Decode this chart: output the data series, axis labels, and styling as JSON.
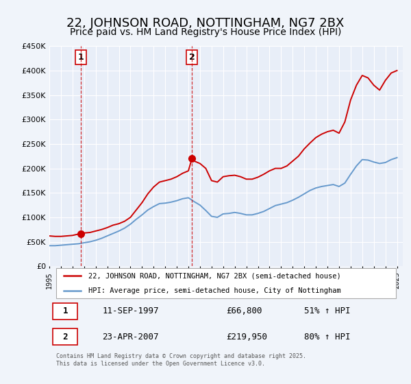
{
  "title": "22, JOHNSON ROAD, NOTTINGHAM, NG7 2BX",
  "subtitle": "Price paid vs. HM Land Registry's House Price Index (HPI)",
  "title_fontsize": 13,
  "subtitle_fontsize": 10,
  "background_color": "#f0f4fa",
  "plot_bg_color": "#e8eef8",
  "grid_color": "#ffffff",
  "ylabel_ticks": [
    "£0",
    "£50K",
    "£100K",
    "£150K",
    "£200K",
    "£250K",
    "£300K",
    "£350K",
    "£400K",
    "£450K"
  ],
  "ylabel_values": [
    0,
    50000,
    100000,
    150000,
    200000,
    250000,
    300000,
    350000,
    400000,
    450000
  ],
  "ylim": [
    0,
    450000
  ],
  "xlim_start": 1995.0,
  "xlim_end": 2025.5,
  "xtick_years": [
    1995,
    1996,
    1997,
    1998,
    1999,
    2000,
    2001,
    2002,
    2003,
    2004,
    2005,
    2006,
    2007,
    2008,
    2009,
    2010,
    2011,
    2012,
    2013,
    2014,
    2015,
    2016,
    2017,
    2018,
    2019,
    2020,
    2021,
    2022,
    2023,
    2024,
    2025
  ],
  "red_line_color": "#cc0000",
  "blue_line_color": "#6699cc",
  "marker_color": "#cc0000",
  "vline_color": "#cc0000",
  "sale1_x": 1997.7,
  "sale1_y": 66800,
  "sale1_label": "1",
  "sale2_x": 2007.3,
  "sale2_y": 219950,
  "sale2_label": "2",
  "legend_label_red": "22, JOHNSON ROAD, NOTTINGHAM, NG7 2BX (semi-detached house)",
  "legend_label_blue": "HPI: Average price, semi-detached house, City of Nottingham",
  "annotation1_num": "1",
  "annotation1_date": "11-SEP-1997",
  "annotation1_price": "£66,800",
  "annotation1_hpi": "51% ↑ HPI",
  "annotation2_num": "2",
  "annotation2_date": "23-APR-2007",
  "annotation2_price": "£219,950",
  "annotation2_hpi": "80% ↑ HPI",
  "footer": "Contains HM Land Registry data © Crown copyright and database right 2025.\nThis data is licensed under the Open Government Licence v3.0.",
  "red_hpi_x": [
    1995.0,
    1995.5,
    1996.0,
    1996.5,
    1997.0,
    1997.7,
    1998.0,
    1998.5,
    1999.0,
    1999.5,
    2000.0,
    2000.5,
    2001.0,
    2001.5,
    2002.0,
    2002.5,
    2003.0,
    2003.5,
    2004.0,
    2004.5,
    2005.0,
    2005.5,
    2006.0,
    2006.5,
    2007.0,
    2007.3,
    2007.5,
    2008.0,
    2008.5,
    2009.0,
    2009.5,
    2010.0,
    2010.5,
    2011.0,
    2011.5,
    2012.0,
    2012.5,
    2013.0,
    2013.5,
    2014.0,
    2014.5,
    2015.0,
    2015.5,
    2016.0,
    2016.5,
    2017.0,
    2017.5,
    2018.0,
    2018.5,
    2019.0,
    2019.5,
    2020.0,
    2020.5,
    2021.0,
    2021.5,
    2022.0,
    2022.5,
    2023.0,
    2023.5,
    2024.0,
    2024.5,
    2025.0
  ],
  "red_hpi_y": [
    62000,
    61000,
    61000,
    62000,
    63000,
    66800,
    68000,
    69000,
    72000,
    75000,
    79000,
    84000,
    87000,
    92000,
    100000,
    115000,
    130000,
    148000,
    162000,
    172000,
    175000,
    178000,
    183000,
    190000,
    195000,
    219950,
    215000,
    210000,
    200000,
    175000,
    172000,
    183000,
    185000,
    186000,
    183000,
    178000,
    178000,
    182000,
    188000,
    195000,
    200000,
    200000,
    205000,
    215000,
    225000,
    240000,
    252000,
    263000,
    270000,
    275000,
    278000,
    272000,
    295000,
    340000,
    370000,
    390000,
    385000,
    370000,
    360000,
    380000,
    395000,
    400000
  ],
  "blue_hpi_x": [
    1995.0,
    1995.5,
    1996.0,
    1996.5,
    1997.0,
    1997.5,
    1998.0,
    1998.5,
    1999.0,
    1999.5,
    2000.0,
    2000.5,
    2001.0,
    2001.5,
    2002.0,
    2002.5,
    2003.0,
    2003.5,
    2004.0,
    2004.5,
    2005.0,
    2005.5,
    2006.0,
    2006.5,
    2007.0,
    2007.5,
    2008.0,
    2008.5,
    2009.0,
    2009.5,
    2010.0,
    2010.5,
    2011.0,
    2011.5,
    2012.0,
    2012.5,
    2013.0,
    2013.5,
    2014.0,
    2014.5,
    2015.0,
    2015.5,
    2016.0,
    2016.5,
    2017.0,
    2017.5,
    2018.0,
    2018.5,
    2019.0,
    2019.5,
    2020.0,
    2020.5,
    2021.0,
    2021.5,
    2022.0,
    2022.5,
    2023.0,
    2023.5,
    2024.0,
    2024.5,
    2025.0
  ],
  "blue_hpi_y": [
    42000,
    42000,
    43000,
    44000,
    45000,
    46000,
    48000,
    50000,
    53000,
    57000,
    62000,
    67000,
    72000,
    78000,
    86000,
    96000,
    105000,
    115000,
    122000,
    128000,
    129000,
    131000,
    134000,
    138000,
    140000,
    132000,
    125000,
    114000,
    102000,
    100000,
    107000,
    108000,
    110000,
    108000,
    105000,
    105000,
    108000,
    112000,
    118000,
    124000,
    127000,
    130000,
    135000,
    141000,
    148000,
    155000,
    160000,
    163000,
    165000,
    167000,
    163000,
    170000,
    188000,
    205000,
    218000,
    217000,
    213000,
    210000,
    212000,
    218000,
    222000
  ]
}
